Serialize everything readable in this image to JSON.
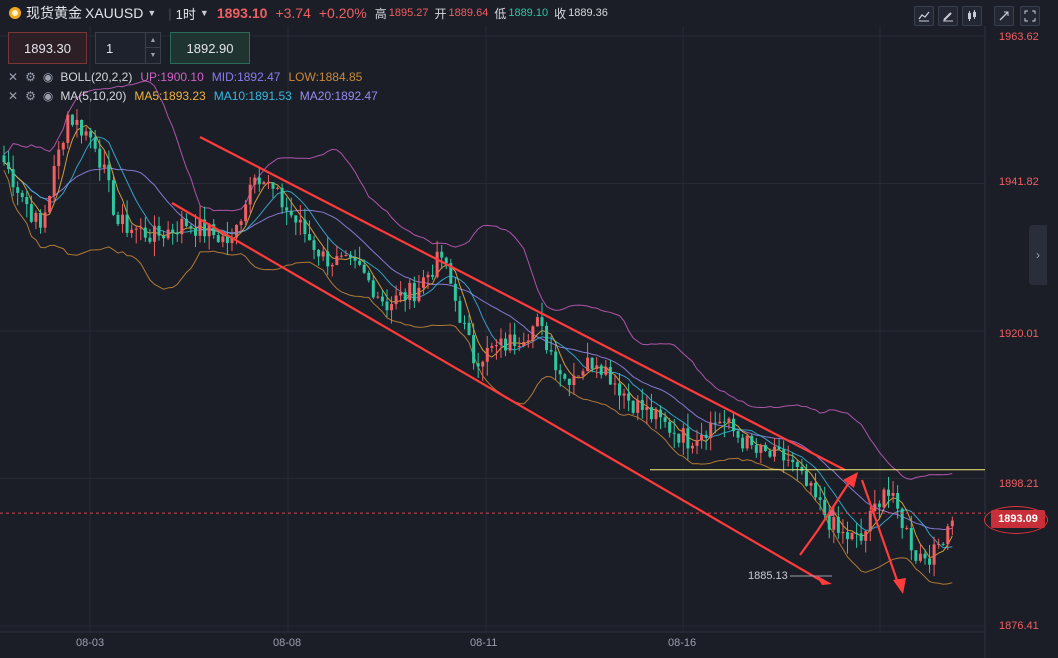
{
  "header": {
    "symbol_name": "现货黄金",
    "symbol_code": "XAUUSD",
    "timeframe": "1时",
    "last_price": "1893.10",
    "change": "+3.74",
    "change_pct": "+0.20%",
    "high_label": "高",
    "high_value": "1895.27",
    "open_label": "开",
    "open_value": "1889.64",
    "low_label": "低",
    "low_value": "1889.10",
    "close_label": "收",
    "close_value": "1889.36"
  },
  "toolbar": {
    "icons": [
      "line-chart-icon",
      "draw-pen-icon",
      "candlestick-icon",
      "collapse-icon",
      "fullscreen-icon"
    ]
  },
  "order_panel": {
    "sell_price": "1893.30",
    "quantity": "1",
    "buy_price": "1892.90"
  },
  "indicators": {
    "boll": {
      "name": "BOLL(20,2,2)",
      "up": "UP:1900.10",
      "mid": "MID:1892.47",
      "low": "LOW:1884.85"
    },
    "ma": {
      "name": "MA(5,10,20)",
      "ma5": "MA5:1893.23",
      "ma10": "MA10:1891.53",
      "ma20": "MA20:1892.47"
    }
  },
  "right_axis": {
    "labels": [
      "1963.62",
      "1941.82",
      "1920.01",
      "1898.21",
      "1876.41"
    ],
    "current_price_tag": "1893.09"
  },
  "x_axis": {
    "labels": [
      "08-03",
      "08-08",
      "08-11",
      "08-16"
    ]
  },
  "annotations": {
    "low_marker": "1885.13"
  },
  "colors": {
    "up": "#f05f62",
    "down": "#2ec7a0",
    "boll_up": "#c75fc2",
    "boll_mid": "#8b7cf0",
    "boll_low": "#c98a3a",
    "ma5": "#f0b33c",
    "ma10": "#38b8e0",
    "ma20": "#9a8af0",
    "channel": "#ff3b3b",
    "hline": "#f5f07a"
  },
  "chart_data": {
    "type": "candlestick",
    "symbol": "XAUUSD",
    "interval": "1H",
    "ylim": [
      1876.41,
      1963.62
    ],
    "y_ticks": [
      1963.62,
      1941.82,
      1920.01,
      1898.21,
      1876.41
    ],
    "x_ticks": [
      "08-03",
      "08-08",
      "08-11",
      "08-16"
    ],
    "last_price": 1893.09,
    "grid": true,
    "horizontal_line": 1899.5,
    "low_marker": 1885.13,
    "series": [
      {
        "name": "BOLL UP",
        "last": 1900.1
      },
      {
        "name": "BOLL MID",
        "last": 1892.47
      },
      {
        "name": "BOLL LOW",
        "last": 1884.85
      },
      {
        "name": "MA5",
        "last": 1893.23
      },
      {
        "name": "MA10",
        "last": 1891.53
      },
      {
        "name": "MA20",
        "last": 1892.47
      }
    ],
    "trend_path": [
      [
        0,
        1945
      ],
      [
        8,
        1935
      ],
      [
        14,
        1952
      ],
      [
        20,
        1948
      ],
      [
        25,
        1936
      ],
      [
        33,
        1934
      ],
      [
        40,
        1936
      ],
      [
        47,
        1934
      ],
      [
        50,
        1933
      ],
      [
        55,
        1944
      ],
      [
        62,
        1938
      ],
      [
        70,
        1931
      ],
      [
        78,
        1929
      ],
      [
        84,
        1924
      ],
      [
        90,
        1926
      ],
      [
        96,
        1931
      ],
      [
        103,
        1916
      ],
      [
        110,
        1918
      ],
      [
        117,
        1921
      ],
      [
        123,
        1913
      ],
      [
        130,
        1916
      ],
      [
        137,
        1910
      ],
      [
        143,
        1907
      ],
      [
        150,
        1904
      ],
      [
        157,
        1907
      ],
      [
        165,
        1902
      ],
      [
        172,
        1901
      ],
      [
        178,
        1895
      ],
      [
        183,
        1890
      ],
      [
        188,
        1889
      ],
      [
        193,
        1897
      ],
      [
        197,
        1892
      ],
      [
        200,
        1887
      ],
      [
        204,
        1887
      ],
      [
        208,
        1893
      ]
    ]
  }
}
